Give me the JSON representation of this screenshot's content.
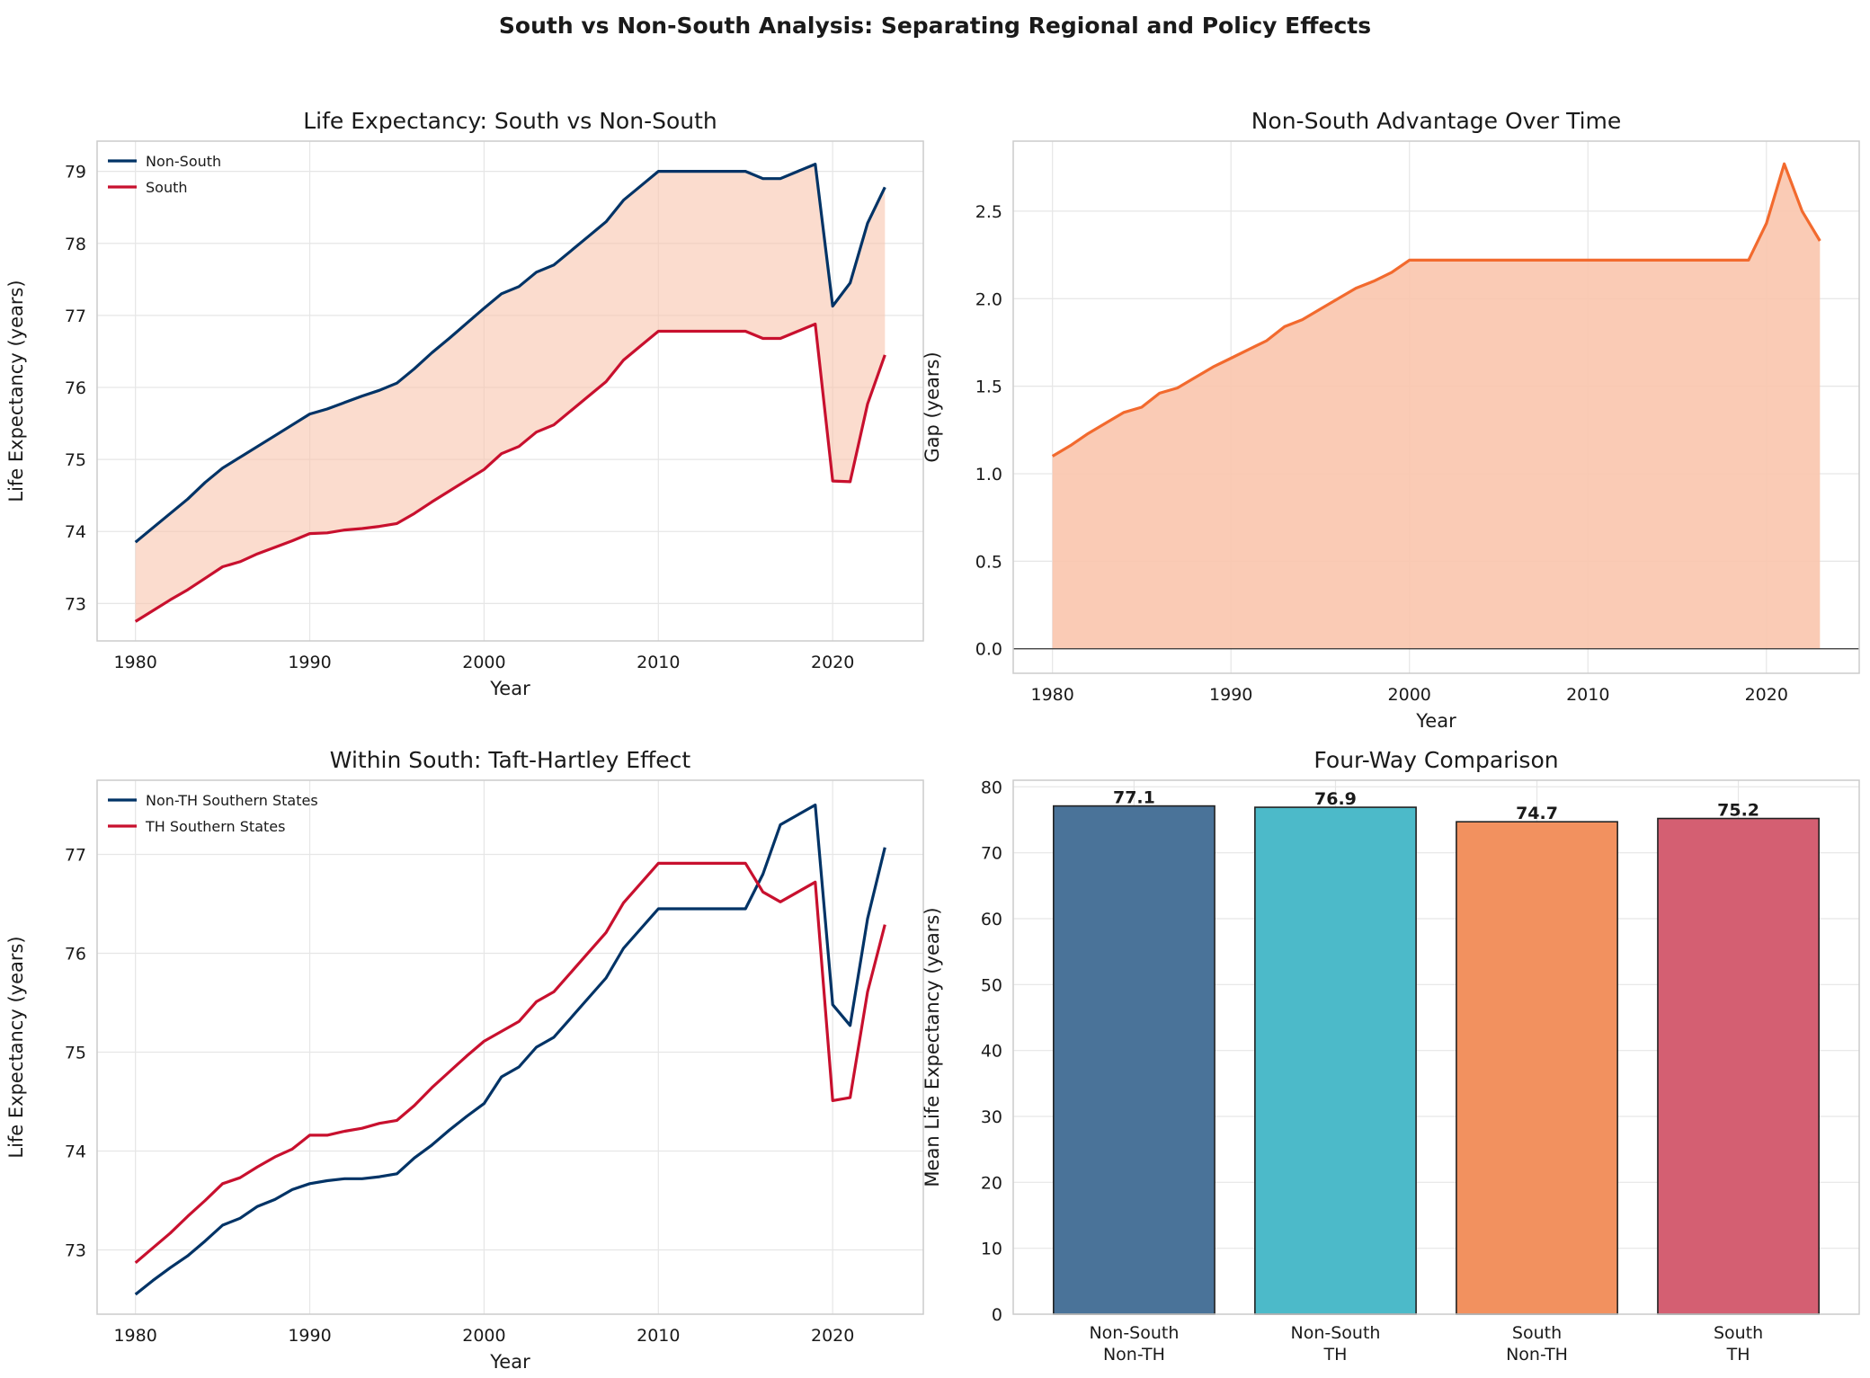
{
  "suptitle": "South vs Non-South Analysis: Separating Regional and Policy Effects",
  "colors": {
    "navy": "#003366",
    "crimson": "#c8102e",
    "orange": "#f26a2e",
    "fill_peach": "#f9c5ad",
    "bar_colors": [
      "#4a7399",
      "#4cbac9",
      "#f2915f",
      "#d45f72"
    ],
    "grid": "#e6e6e6",
    "spine": "#cccccc"
  },
  "chart_data": [
    {
      "id": "p1",
      "type": "line",
      "title": "Life Expectancy: South vs Non-South",
      "xlabel": "Year",
      "ylabel": "Life Expectancy (years)",
      "xlim": [
        1977.8,
        2025.2
      ],
      "ylim": [
        72.48,
        79.42
      ],
      "xticks": [
        1980,
        1990,
        2000,
        2010,
        2020
      ],
      "yticks": [
        73,
        74,
        75,
        76,
        77,
        78,
        79
      ],
      "grid": true,
      "legend": "top-left",
      "fill_between": true,
      "x": [
        1980,
        1981,
        1982,
        1983,
        1984,
        1985,
        1986,
        1987,
        1988,
        1989,
        1990,
        1991,
        1992,
        1993,
        1994,
        1995,
        1996,
        1997,
        1998,
        1999,
        2000,
        2001,
        2002,
        2003,
        2004,
        2005,
        2006,
        2007,
        2008,
        2009,
        2010,
        2011,
        2012,
        2013,
        2014,
        2015,
        2016,
        2017,
        2018,
        2019,
        2020,
        2021,
        2022,
        2023
      ],
      "series": [
        {
          "name": "Non-South",
          "color": "#003366",
          "values": [
            73.85,
            74.05,
            74.25,
            74.45,
            74.68,
            74.88,
            75.03,
            75.18,
            75.33,
            75.48,
            75.63,
            75.7,
            75.79,
            75.88,
            75.96,
            76.06,
            76.26,
            76.48,
            76.68,
            76.89,
            77.1,
            77.3,
            77.4,
            77.6,
            77.7,
            77.9,
            78.1,
            78.3,
            78.6,
            78.8,
            79.0,
            79.0,
            79.0,
            79.0,
            79.0,
            79.0,
            78.9,
            78.9,
            79.0,
            79.1,
            77.13,
            77.45,
            78.28,
            78.78
          ]
        },
        {
          "name": "South",
          "color": "#c8102e",
          "values": [
            72.75,
            72.9,
            73.05,
            73.19,
            73.35,
            73.51,
            73.58,
            73.69,
            73.78,
            73.87,
            73.97,
            73.98,
            74.02,
            74.04,
            74.07,
            74.11,
            74.25,
            74.41,
            74.56,
            74.71,
            74.86,
            75.08,
            75.18,
            75.38,
            75.48,
            75.68,
            75.88,
            76.08,
            76.38,
            76.58,
            76.78,
            76.78,
            76.78,
            76.78,
            76.78,
            76.78,
            76.68,
            76.68,
            76.78,
            76.88,
            74.7,
            74.69,
            75.77,
            76.45
          ]
        }
      ]
    },
    {
      "id": "p2",
      "type": "area",
      "title": "Non-South Advantage Over Time",
      "xlabel": "Year",
      "ylabel": "Gap (years)",
      "xlim": [
        1977.8,
        2025.2
      ],
      "ylim": [
        -0.14,
        2.9
      ],
      "xticks": [
        1980,
        1990,
        2000,
        2010,
        2020
      ],
      "yticks": [
        "0.0",
        "0.5",
        "1.0",
        "1.5",
        "2.0",
        "2.5"
      ],
      "grid": true,
      "zero_line": true,
      "x": [
        1980,
        1981,
        1982,
        1983,
        1984,
        1985,
        1986,
        1987,
        1988,
        1989,
        1990,
        1991,
        1992,
        1993,
        1994,
        1995,
        1996,
        1997,
        1998,
        1999,
        2000,
        2001,
        2002,
        2003,
        2004,
        2005,
        2006,
        2007,
        2008,
        2009,
        2010,
        2011,
        2012,
        2013,
        2014,
        2015,
        2016,
        2017,
        2018,
        2019,
        2020,
        2021,
        2022,
        2023
      ],
      "series": [
        {
          "name": "",
          "color": "#f26a2e",
          "values": [
            1.1,
            1.16,
            1.23,
            1.29,
            1.35,
            1.38,
            1.46,
            1.49,
            1.55,
            1.61,
            1.66,
            1.71,
            1.76,
            1.84,
            1.88,
            1.94,
            2.0,
            2.06,
            2.1,
            2.15,
            2.22,
            2.22,
            2.22,
            2.22,
            2.22,
            2.22,
            2.22,
            2.22,
            2.22,
            2.22,
            2.22,
            2.22,
            2.22,
            2.22,
            2.22,
            2.22,
            2.22,
            2.22,
            2.22,
            2.22,
            2.43,
            2.77,
            2.5,
            2.33
          ]
        }
      ]
    },
    {
      "id": "p3",
      "type": "line",
      "title": "Within South: Taft-Hartley Effect",
      "xlabel": "Year",
      "ylabel": "Life Expectancy (years)",
      "xlim": [
        1977.8,
        2025.2
      ],
      "ylim": [
        72.35,
        77.75
      ],
      "xticks": [
        1980,
        1990,
        2000,
        2010,
        2020
      ],
      "yticks": [
        73,
        74,
        75,
        76,
        77
      ],
      "grid": true,
      "legend": "top-left",
      "x": [
        1980,
        1981,
        1982,
        1983,
        1984,
        1985,
        1986,
        1987,
        1988,
        1989,
        1990,
        1991,
        1992,
        1993,
        1994,
        1995,
        1996,
        1997,
        1998,
        1999,
        2000,
        2001,
        2002,
        2003,
        2004,
        2005,
        2006,
        2007,
        2008,
        2009,
        2010,
        2011,
        2012,
        2013,
        2014,
        2015,
        2016,
        2017,
        2018,
        2019,
        2020,
        2021,
        2022,
        2023
      ],
      "series": [
        {
          "name": "Non-TH Southern States",
          "color": "#003366",
          "values": [
            72.55,
            72.69,
            72.82,
            72.94,
            73.09,
            73.25,
            73.32,
            73.44,
            73.51,
            73.61,
            73.67,
            73.7,
            73.72,
            73.72,
            73.74,
            73.77,
            73.93,
            74.06,
            74.21,
            74.35,
            74.48,
            74.75,
            74.85,
            75.05,
            75.15,
            75.35,
            75.55,
            75.75,
            76.05,
            76.25,
            76.45,
            76.45,
            76.45,
            76.45,
            76.45,
            76.45,
            76.8,
            77.3,
            77.4,
            77.5,
            75.48,
            75.27,
            76.35,
            77.07
          ]
        },
        {
          "name": "TH Southern States",
          "color": "#c8102e",
          "values": [
            72.87,
            73.02,
            73.17,
            73.34,
            73.5,
            73.67,
            73.73,
            73.84,
            73.94,
            74.02,
            74.16,
            74.16,
            74.2,
            74.23,
            74.28,
            74.31,
            74.46,
            74.64,
            74.8,
            74.96,
            75.11,
            75.21,
            75.31,
            75.51,
            75.61,
            75.81,
            76.01,
            76.21,
            76.51,
            76.71,
            76.91,
            76.91,
            76.91,
            76.91,
            76.91,
            76.91,
            76.62,
            76.52,
            76.62,
            76.72,
            74.51,
            74.54,
            75.61,
            76.29
          ]
        }
      ]
    },
    {
      "id": "p4",
      "type": "bar",
      "title": "Four-Way Comparison",
      "xlabel": "",
      "ylabel": "Mean Life Expectancy (years)",
      "ylim": [
        0,
        81
      ],
      "yticks": [
        0,
        10,
        20,
        30,
        40,
        50,
        60,
        70,
        80
      ],
      "grid": true,
      "categories": [
        [
          "Non-South",
          "Non-TH"
        ],
        [
          "Non-South",
          "TH"
        ],
        [
          "South",
          "Non-TH"
        ],
        [
          "South",
          "TH"
        ]
      ],
      "values": [
        77.1,
        76.9,
        74.7,
        75.2
      ],
      "value_labels": [
        "77.1",
        "76.9",
        "74.7",
        "75.2"
      ]
    }
  ]
}
